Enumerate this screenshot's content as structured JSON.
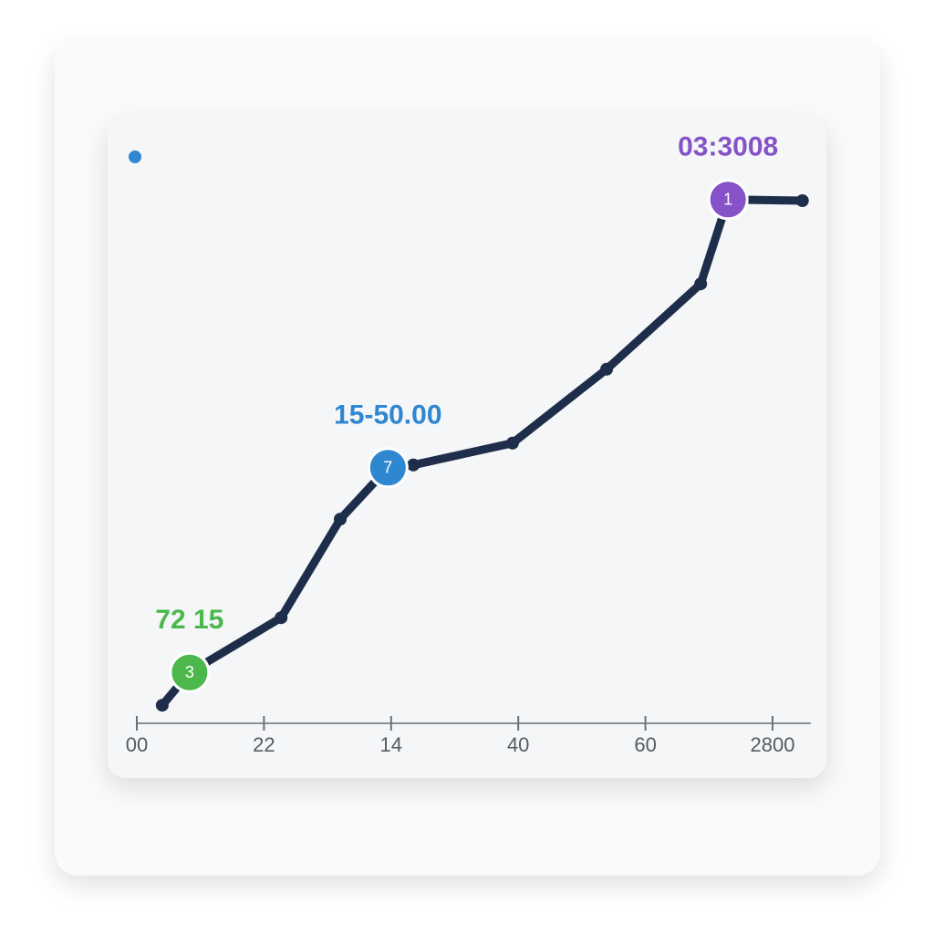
{
  "chart_data": {
    "type": "line",
    "x": [
      4,
      8.3,
      22.7,
      32,
      39.5,
      43.5,
      59.1,
      73.9,
      88.7,
      93,
      104.7
    ],
    "series": [
      {
        "color": "#1e2d4a",
        "values": [
          3.3,
          9.3,
          19.3,
          37.3,
          46.7,
          47.2,
          51.2,
          64.7,
          80.3,
          95.7,
          95.5
        ]
      }
    ],
    "xlim": [
      0,
      106
    ],
    "ylim": [
      0,
      100
    ],
    "xticks": [
      {
        "value": 0,
        "label": "00"
      },
      {
        "value": 20,
        "label": "22"
      },
      {
        "value": 40,
        "label": "14"
      },
      {
        "value": 60,
        "label": "40"
      },
      {
        "value": 80,
        "label": "60"
      },
      {
        "value": 100,
        "label": "2800"
      }
    ],
    "annotations": [
      {
        "text": "72 15",
        "badge": "3",
        "x": 8.3,
        "y": 9.3,
        "color": "#4cb84c"
      },
      {
        "text": "15-50.00",
        "badge": "7",
        "x": 39.5,
        "y": 46.7,
        "color": "#2f86d1"
      },
      {
        "text": "03:3008",
        "badge": "1",
        "x": 93,
        "y": 95.7,
        "color": "#8652c8"
      }
    ]
  }
}
